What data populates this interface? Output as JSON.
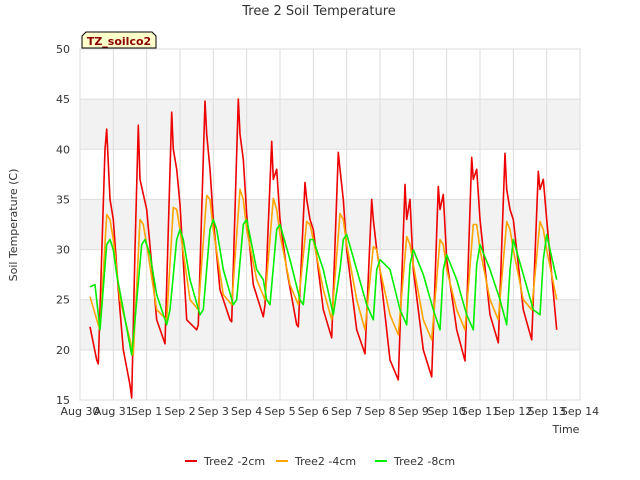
{
  "chart_data": {
    "type": "line",
    "title": "Tree 2 Soil Temperature",
    "xlabel": "Time",
    "ylabel": "Soil Temperature (C)",
    "ylim": [
      15,
      50
    ],
    "yticks": [
      15,
      20,
      25,
      30,
      35,
      40,
      45,
      50
    ],
    "xlim": [
      0,
      15
    ],
    "xticks": [
      0,
      1,
      2,
      3,
      4,
      5,
      6,
      7,
      8,
      9,
      10,
      11,
      12,
      13,
      14,
      15
    ],
    "xticklabels": [
      "Aug 30",
      "Aug 31",
      "Sep 1",
      "Sep 2",
      "Sep 3",
      "Sep 4",
      "Sep 5",
      "Sep 6",
      "Sep 7",
      "Sep 8",
      "Sep 9",
      "Sep 10",
      "Sep 11",
      "Sep 12",
      "Sep 13",
      "Sep 14"
    ],
    "x_unit": "days since Aug 30",
    "annotation": "TZ_soilco2",
    "legend_position": "bottom-center",
    "series": [
      {
        "name": "Tree2 -2cm",
        "color": "#ee0000",
        "x": [
          0.3,
          0.5,
          0.55,
          0.75,
          0.8,
          0.9,
          1.0,
          1.15,
          1.3,
          1.5,
          1.55,
          1.65,
          1.75,
          1.8,
          2.0,
          2.3,
          2.55,
          2.75,
          2.8,
          2.9,
          3.0,
          3.2,
          3.5,
          3.55,
          3.75,
          3.8,
          3.9,
          4.0,
          4.2,
          4.5,
          4.55,
          4.75,
          4.8,
          4.9,
          5.0,
          5.2,
          5.5,
          5.55,
          5.75,
          5.8,
          5.9,
          6.0,
          6.2,
          6.5,
          6.55,
          6.75,
          6.8,
          6.9,
          7.0,
          7.3,
          7.55,
          7.75,
          7.8,
          7.9,
          8.0,
          8.3,
          8.55,
          8.75,
          8.8,
          8.9,
          9.0,
          9.3,
          9.55,
          9.75,
          9.8,
          9.9,
          10.0,
          10.3,
          10.55,
          10.75,
          10.8,
          10.9,
          11.0,
          11.3,
          11.55,
          11.75,
          11.8,
          11.9,
          12.0,
          12.3,
          12.55,
          12.75,
          12.8,
          12.9,
          13.0,
          13.3,
          13.55,
          13.75,
          13.8,
          13.9,
          14.0,
          14.3
        ],
        "y": [
          22.3,
          19.0,
          18.6,
          40.0,
          42.0,
          35.0,
          33.0,
          26.0,
          20.0,
          16.5,
          15.2,
          30.0,
          42.4,
          37.0,
          34.0,
          23.0,
          20.6,
          43.7,
          40.0,
          38.0,
          34.5,
          23.0,
          22.0,
          22.5,
          44.8,
          41.5,
          38.0,
          33.0,
          26.0,
          23.0,
          22.8,
          45.0,
          41.5,
          39.0,
          33.5,
          26.5,
          23.3,
          24.5,
          40.8,
          37.0,
          38.0,
          33.0,
          28.0,
          22.5,
          22.3,
          36.7,
          35.0,
          33.0,
          32.0,
          24.0,
          21.2,
          39.7,
          38.0,
          35.0,
          30.0,
          22.0,
          19.6,
          35.0,
          33.0,
          30.0,
          28.0,
          19.0,
          17.0,
          36.5,
          33.0,
          35.0,
          28.0,
          20.0,
          17.3,
          36.3,
          34.0,
          35.5,
          29.0,
          22.0,
          18.9,
          39.2,
          37.0,
          38.0,
          33.0,
          23.5,
          20.7,
          39.6,
          36.0,
          34.0,
          33.0,
          24.0,
          21.0,
          37.8,
          36.0,
          37.0,
          33.0,
          22.0
        ]
      },
      {
        "name": "Tree2 -4cm",
        "color": "#ffa500",
        "x": [
          0.3,
          0.55,
          0.6,
          0.8,
          0.9,
          1.0,
          1.2,
          1.5,
          1.6,
          1.8,
          1.9,
          2.0,
          2.3,
          2.6,
          2.8,
          2.9,
          3.0,
          3.3,
          3.55,
          3.8,
          3.9,
          4.0,
          4.3,
          4.55,
          4.8,
          4.9,
          5.0,
          5.3,
          5.55,
          5.8,
          5.9,
          6.0,
          6.3,
          6.55,
          6.8,
          6.9,
          7.0,
          7.3,
          7.55,
          7.8,
          7.9,
          8.0,
          8.3,
          8.55,
          8.8,
          8.9,
          9.0,
          9.3,
          9.55,
          9.8,
          9.9,
          10.0,
          10.3,
          10.55,
          10.8,
          10.9,
          11.0,
          11.3,
          11.55,
          11.8,
          11.9,
          12.0,
          12.3,
          12.55,
          12.8,
          12.9,
          13.0,
          13.3,
          13.55,
          13.8,
          13.9,
          14.0,
          14.3
        ],
        "y": [
          25.3,
          22.5,
          22.0,
          33.5,
          33.0,
          31.0,
          25.0,
          21.0,
          19.5,
          33.0,
          32.5,
          30.5,
          24.0,
          23.0,
          34.2,
          34.0,
          32.0,
          25.0,
          24.0,
          35.4,
          35.0,
          32.0,
          25.5,
          24.5,
          36.0,
          35.0,
          32.0,
          27.0,
          25.0,
          35.1,
          34.0,
          31.5,
          26.5,
          24.5,
          32.8,
          32.5,
          31.0,
          26.0,
          23.0,
          33.6,
          33.0,
          30.5,
          25.0,
          22.0,
          30.3,
          30.0,
          28.0,
          23.5,
          21.5,
          31.3,
          30.5,
          28.5,
          23.0,
          21.0,
          31.0,
          30.5,
          28.0,
          24.0,
          22.0,
          32.5,
          32.5,
          30.0,
          25.0,
          23.0,
          32.8,
          32.0,
          30.0,
          25.0,
          24.0,
          32.8,
          32.0,
          30.0,
          25.0
        ]
      },
      {
        "name": "Tree2 -8cm",
        "color": "#00ee00",
        "x": [
          0.3,
          0.45,
          0.6,
          0.8,
          0.9,
          1.0,
          1.1,
          1.3,
          1.55,
          1.65,
          1.85,
          1.95,
          2.1,
          2.3,
          2.6,
          2.7,
          2.9,
          3.0,
          3.1,
          3.3,
          3.6,
          3.7,
          3.9,
          4.0,
          4.1,
          4.3,
          4.6,
          4.7,
          4.9,
          5.0,
          5.3,
          5.5,
          5.6,
          5.7,
          5.9,
          6.0,
          6.3,
          6.6,
          6.7,
          6.9,
          7.0,
          7.3,
          7.6,
          7.8,
          7.9,
          8.0,
          8.3,
          8.6,
          8.8,
          8.9,
          9.0,
          9.3,
          9.6,
          9.8,
          9.9,
          10.0,
          10.3,
          10.6,
          10.8,
          10.9,
          11.0,
          11.3,
          11.6,
          11.8,
          11.9,
          12.0,
          12.3,
          12.6,
          12.8,
          12.9,
          13.0,
          13.3,
          13.6,
          13.8,
          13.9,
          14.0,
          14.3
        ],
        "y": [
          26.3,
          26.5,
          22.0,
          30.5,
          31.0,
          30.0,
          27.5,
          24.0,
          19.5,
          23.0,
          30.5,
          31.0,
          29.5,
          25.5,
          22.5,
          24.0,
          31.0,
          32.0,
          31.0,
          27.0,
          23.5,
          24.0,
          32.0,
          33.0,
          32.0,
          28.0,
          24.5,
          25.0,
          32.5,
          33.0,
          28.0,
          27.0,
          25.0,
          24.5,
          32.0,
          32.5,
          29.0,
          25.0,
          24.5,
          31.0,
          31.0,
          28.0,
          23.5,
          28.0,
          31.0,
          31.5,
          28.0,
          24.5,
          23.0,
          28.0,
          29.0,
          28.0,
          24.0,
          22.5,
          28.5,
          30.0,
          27.5,
          24.0,
          22.0,
          28.0,
          29.5,
          27.0,
          23.5,
          22.0,
          28.5,
          30.5,
          28.0,
          25.0,
          22.5,
          28.0,
          31.0,
          27.5,
          24.0,
          23.5,
          29.0,
          31.5,
          27.0
        ]
      }
    ]
  }
}
